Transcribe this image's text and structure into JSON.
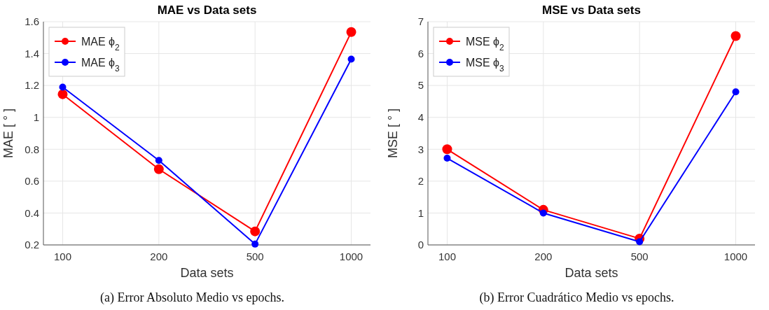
{
  "chart_data": [
    {
      "type": "line",
      "title": "MAE vs Data sets",
      "xlabel": "Data sets",
      "ylabel": "MAE [ ° ]",
      "categories": [
        "100",
        "200",
        "500",
        "1000"
      ],
      "series": [
        {
          "name": "MAE ϕ$_{2}$",
          "color": "#ff0000",
          "values": [
            1.145,
            0.675,
            0.285,
            1.535
          ]
        },
        {
          "name": "MAE ϕ$_{3}$",
          "color": "#0000ff",
          "values": [
            1.19,
            0.73,
            0.205,
            1.365
          ]
        }
      ],
      "ylim": [
        0.2,
        1.6
      ],
      "yticks": [
        0.2,
        0.4,
        0.6,
        0.8,
        1,
        1.2,
        1.4,
        1.6
      ],
      "grid": true,
      "legend": "top left",
      "marker": "circle",
      "line_style": "solid",
      "annotations": [
        "(a) Error Absoluto Medio vs epochs."
      ]
    },
    {
      "type": "line",
      "title": "MSE vs Data sets",
      "xlabel": "Data sets",
      "ylabel": "MSE [ ° ]",
      "categories": [
        "100",
        "200",
        "500",
        "1000"
      ],
      "series": [
        {
          "name": "MSE ϕ$_{2}$",
          "color": "#ff0000",
          "values": [
            3.0,
            1.1,
            0.2,
            6.55
          ]
        },
        {
          "name": "MSE ϕ$_{3}$",
          "color": "#0000ff",
          "values": [
            2.72,
            1.0,
            0.1,
            4.8
          ]
        }
      ],
      "ylim": [
        0,
        7
      ],
      "yticks": [
        0,
        1,
        2,
        3,
        4,
        5,
        6,
        7
      ],
      "grid": true,
      "legend": "top left",
      "marker": "circle",
      "line_style": "solid",
      "annotations": [
        "(b) Error Cuadrático Medio vs epochs."
      ]
    }
  ]
}
